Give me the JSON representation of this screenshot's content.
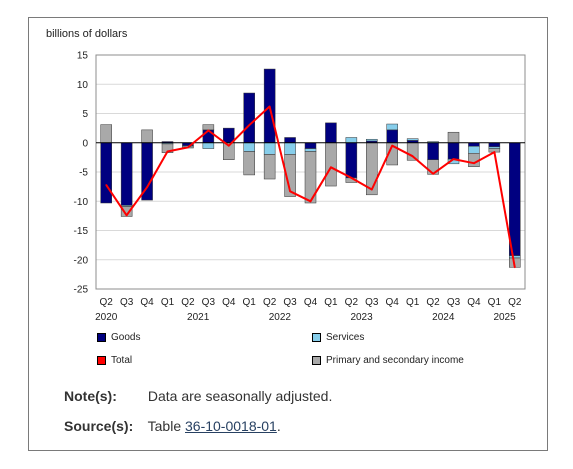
{
  "chart_data": {
    "type": "bar",
    "ylabel": "billions of dollars",
    "ylim": [
      -25,
      15
    ],
    "yticks": [
      15,
      10,
      5,
      0,
      -5,
      -10,
      -15,
      -20,
      -25
    ],
    "stacked": true,
    "grid": true,
    "legend_position": "bottom",
    "categories": [
      "Q2 2020",
      "Q3 2020",
      "Q4 2020",
      "Q1 2021",
      "Q2 2021",
      "Q3 2021",
      "Q4 2021",
      "Q1 2022",
      "Q2 2022",
      "Q3 2022",
      "Q4 2022",
      "Q1 2023",
      "Q2 2023",
      "Q3 2023",
      "Q4 2023",
      "Q1 2024",
      "Q2 2024",
      "Q3 2024",
      "Q4 2024",
      "Q1 2025",
      "Q2 2025"
    ],
    "quarter_labels": [
      "Q2",
      "Q3",
      "Q4",
      "Q1",
      "Q2",
      "Q3",
      "Q4",
      "Q1",
      "Q2",
      "Q3",
      "Q4",
      "Q1",
      "Q2",
      "Q3",
      "Q4",
      "Q1",
      "Q2",
      "Q3",
      "Q4",
      "Q1",
      "Q2"
    ],
    "year_labels": [
      {
        "label": "2020",
        "index": 0
      },
      {
        "label": "2021",
        "index": 4.5
      },
      {
        "label": "2022",
        "index": 8.5
      },
      {
        "label": "2023",
        "index": 12.5
      },
      {
        "label": "2024",
        "index": 16.5
      },
      {
        "label": "2025",
        "index": 19.5
      }
    ],
    "series": [
      {
        "name": "Goods",
        "color": "#000080",
        "values": [
          -10.3,
          -10.7,
          -9.8,
          0.2,
          -0.5,
          2.2,
          2.5,
          8.5,
          12.6,
          0.9,
          -1.0,
          3.4,
          -6.0,
          0.3,
          2.2,
          0.4,
          -2.9,
          -2.8,
          -0.6,
          -0.7,
          -19.3
        ]
      },
      {
        "name": "Services",
        "color": "#87ceeb",
        "values": [
          0.0,
          -0.2,
          0.0,
          -0.2,
          -0.2,
          -1.0,
          0.0,
          -1.5,
          -2.0,
          -2.0,
          -0.5,
          0.0,
          0.9,
          0.3,
          1.0,
          0.3,
          0.2,
          -0.8,
          -1.2,
          -0.3,
          -0.4
        ]
      },
      {
        "name": "Primary and secondary income",
        "color": "#a9a9a9",
        "values": [
          3.1,
          -1.7,
          2.2,
          -1.5,
          -0.2,
          0.9,
          -2.9,
          -4.0,
          -4.2,
          -7.2,
          -8.8,
          -7.4,
          -0.8,
          -8.9,
          -3.8,
          -3.0,
          -2.5,
          1.8,
          -2.3,
          -0.6,
          -1.6
        ]
      },
      {
        "name": "Total",
        "color": "#ff0000",
        "values": [
          -7.2,
          -12.4,
          -7.6,
          -1.5,
          -0.8,
          2.1,
          -0.5,
          3.0,
          6.2,
          -8.3,
          -10.0,
          -4.2,
          -6.0,
          -8.0,
          -0.5,
          -2.3,
          -5.3,
          -2.8,
          -3.5,
          -1.6,
          -21.3
        ]
      }
    ]
  },
  "legend": {
    "goods": "Goods",
    "services": "Services",
    "total": "Total",
    "income": "Primary and secondary income"
  },
  "notes": {
    "note_label": "Note(s):",
    "note_text": "Data are seasonally adjusted.",
    "source_label": "Source(s):",
    "source_prefix": "Table ",
    "source_link": "36-10-0018-01",
    "source_suffix": "."
  }
}
